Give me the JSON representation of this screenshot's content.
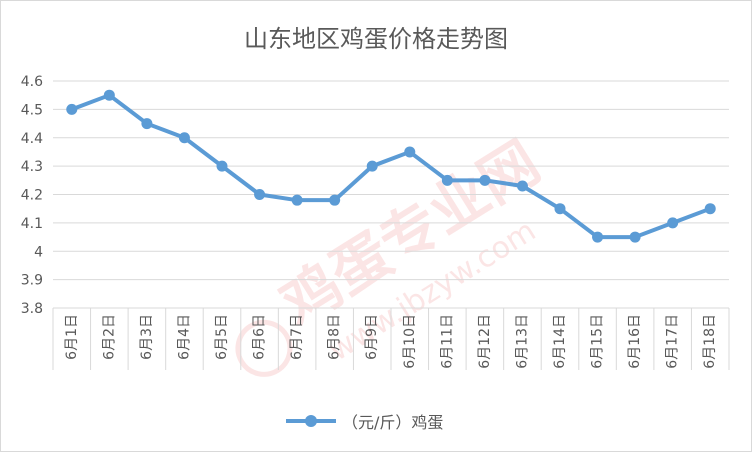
{
  "chart_data": {
    "type": "line",
    "title": "山东地区鸡蛋价格走势图",
    "xlabel": "",
    "ylabel": "",
    "categories": [
      "6月1日",
      "6月2日",
      "6月3日",
      "6月4日",
      "6月5日",
      "6月6日",
      "6月7日",
      "6月8日",
      "6月9日",
      "6月10日",
      "6月11日",
      "6月12日",
      "6月13日",
      "6月14日",
      "6月15日",
      "6月16日",
      "6月17日",
      "6月18日"
    ],
    "series": [
      {
        "name": "（元/斤）鸡蛋",
        "color": "#5b9bd5",
        "values": [
          4.5,
          4.55,
          4.45,
          4.4,
          4.3,
          4.2,
          4.18,
          4.18,
          4.3,
          4.35,
          4.25,
          4.25,
          4.23,
          4.15,
          4.05,
          4.05,
          4.1,
          4.15
        ]
      }
    ],
    "ylim": [
      3.8,
      4.6
    ],
    "yticks": [
      3.8,
      3.9,
      4,
      4.1,
      4.2,
      4.3,
      4.4,
      4.5,
      4.6
    ],
    "grid": true,
    "legend_position": "bottom",
    "watermark": "鸡蛋专业网 www.jbzyw.com"
  },
  "colors": {
    "line": "#5b9bd5",
    "grid": "#d9d9d9",
    "text": "#595959",
    "watermark": "#e03030"
  }
}
